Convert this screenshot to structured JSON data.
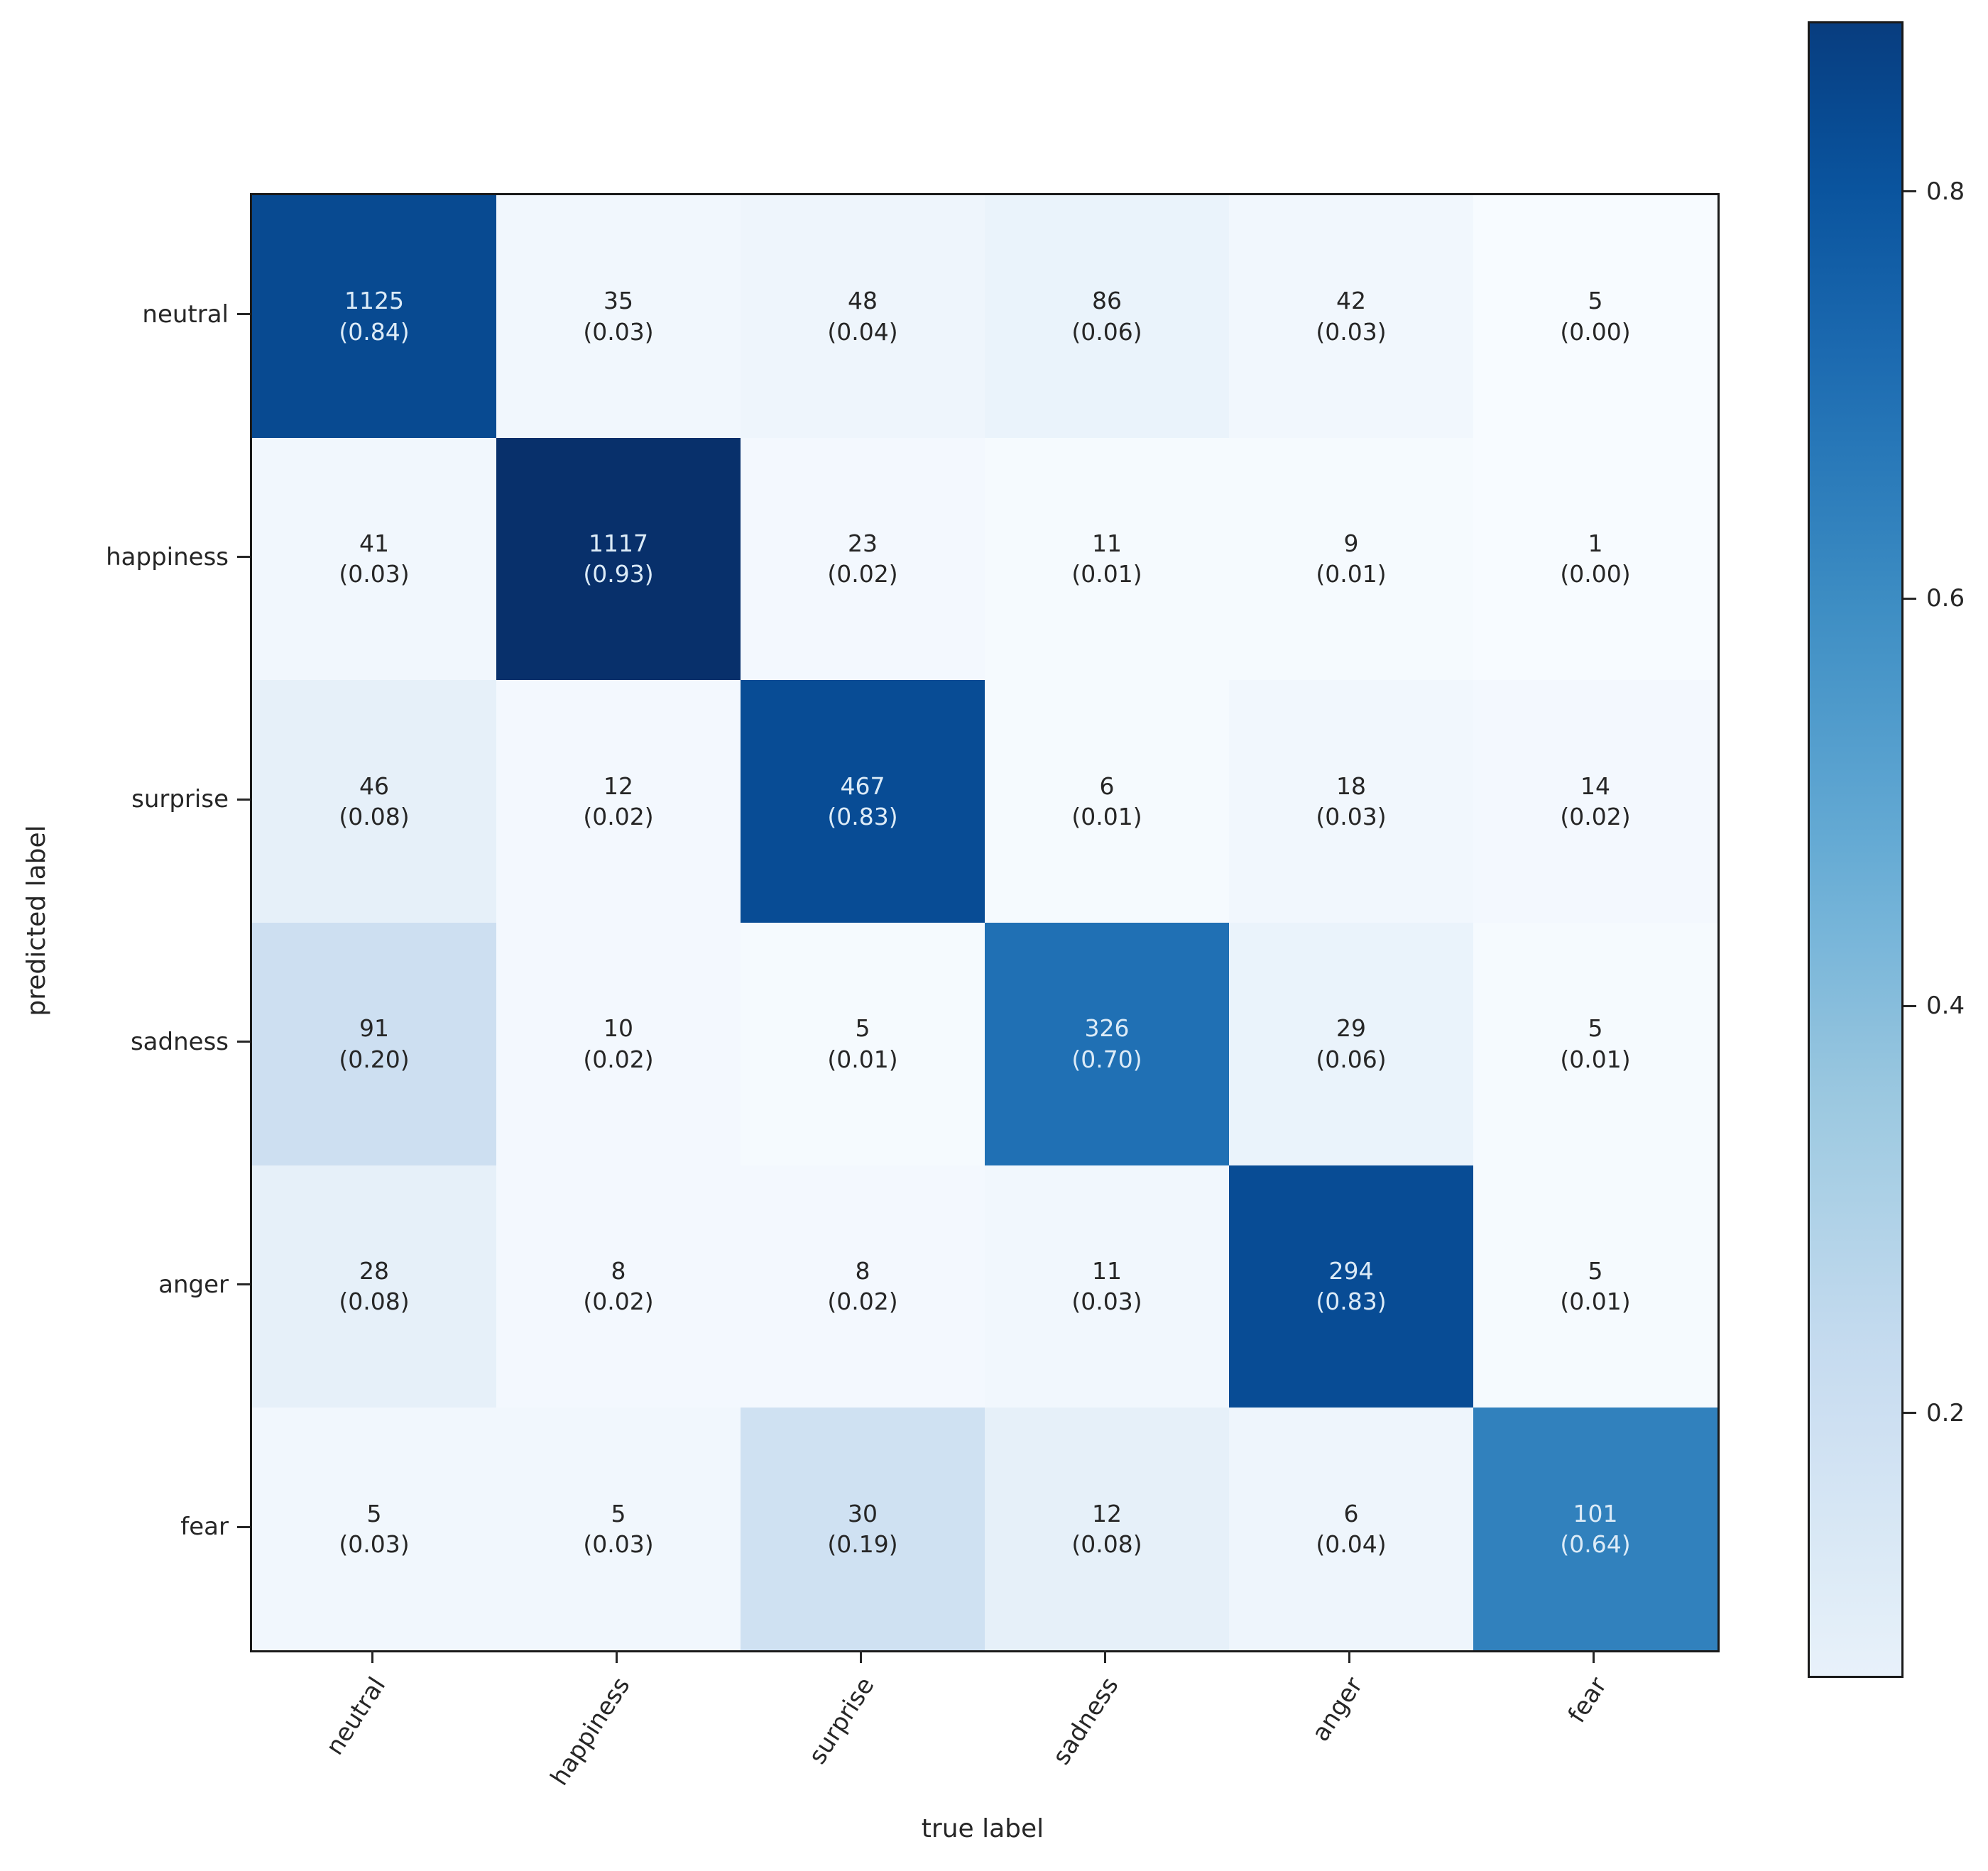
{
  "figure": {
    "background": "#ffffff"
  },
  "chart_data": {
    "type": "heatmap",
    "title": "",
    "xlabel": "true label",
    "ylabel": "predicted label",
    "x_categories": [
      "neutral",
      "happiness",
      "surprise",
      "sadness",
      "anger",
      "fear"
    ],
    "y_categories": [
      "neutral",
      "happiness",
      "surprise",
      "sadness",
      "anger",
      "fear"
    ],
    "rows": [
      {
        "label": "neutral",
        "counts": [
          1125,
          35,
          48,
          86,
          42,
          5
        ],
        "proportions": [
          0.84,
          0.03,
          0.04,
          0.06,
          0.03,
          0.0
        ]
      },
      {
        "label": "happiness",
        "counts": [
          41,
          1117,
          23,
          11,
          9,
          1
        ],
        "proportions": [
          0.03,
          0.93,
          0.02,
          0.01,
          0.01,
          0.0
        ]
      },
      {
        "label": "surprise",
        "counts": [
          46,
          12,
          467,
          6,
          18,
          14
        ],
        "proportions": [
          0.08,
          0.02,
          0.83,
          0.01,
          0.03,
          0.02
        ]
      },
      {
        "label": "sadness",
        "counts": [
          91,
          10,
          5,
          326,
          29,
          5
        ],
        "proportions": [
          0.2,
          0.02,
          0.01,
          0.7,
          0.06,
          0.01
        ]
      },
      {
        "label": "anger",
        "counts": [
          28,
          8,
          8,
          11,
          294,
          5
        ],
        "proportions": [
          0.08,
          0.02,
          0.02,
          0.03,
          0.83,
          0.01
        ]
      },
      {
        "label": "fear",
        "counts": [
          5,
          5,
          30,
          12,
          6,
          101
        ],
        "proportions": [
          0.03,
          0.03,
          0.19,
          0.08,
          0.04,
          0.64
        ]
      }
    ],
    "colorbar": {
      "ticks": [
        0.8,
        0.6,
        0.4,
        0.2
      ],
      "tick_labels": [
        "0.8",
        "0.6",
        "0.4",
        "0.2"
      ],
      "orientation": "vertical",
      "position": "right"
    },
    "colormap": {
      "name": "Blues",
      "stops": [
        "#f7fbff",
        "#deebf7",
        "#c6dbef",
        "#9ecae1",
        "#6baed6",
        "#4292c6",
        "#2171b5",
        "#08519c",
        "#08306b"
      ],
      "vmin": 0,
      "vmax": 0.93
    },
    "text_colors": {
      "on_dark": "#dcebf7",
      "on_light": "#262626"
    },
    "axis_color": "#1a1a1a",
    "grid": false,
    "cell_text_format": "count newline (proportion)"
  }
}
